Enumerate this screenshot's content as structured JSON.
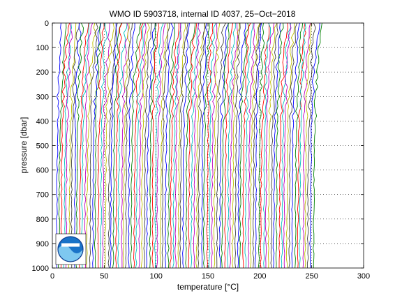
{
  "chart_data": {
    "type": "line",
    "title": "WMO ID 5903718, internal ID 4037, 25−Oct−2018",
    "xlabel": "temperature [°C]",
    "ylabel": "pressure [dbar]",
    "xlim": [
      0,
      300
    ],
    "ylim": [
      0,
      1000
    ],
    "y_reversed": true,
    "xticks": [
      0,
      50,
      100,
      150,
      200,
      250,
      300
    ],
    "yticks": [
      0,
      100,
      200,
      300,
      400,
      500,
      600,
      700,
      800,
      900,
      1000
    ],
    "grid": "dotted",
    "profile_count": 100,
    "profile_offset_step": 2.5,
    "colors": [
      "#0000ff",
      "#008000",
      "#ff0000",
      "#00bfbf",
      "#bf00bf",
      "#bfbf00",
      "#404040"
    ],
    "logo": "noaa-logo",
    "logo_placement": "bottom-left"
  }
}
